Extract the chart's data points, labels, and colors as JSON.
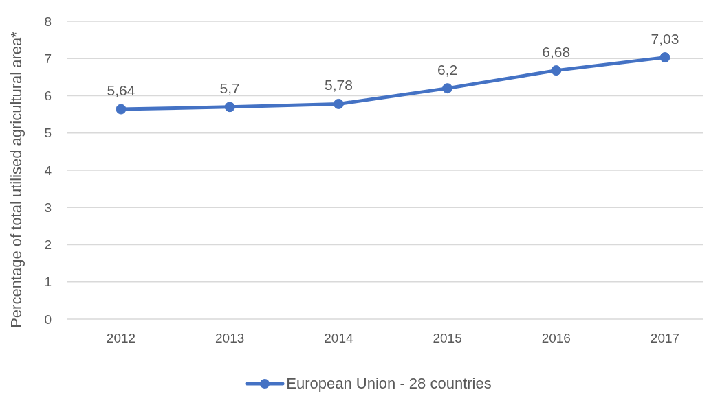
{
  "chart_data": {
    "type": "line",
    "ylabel": "Percentage of total utilised agricultural area*",
    "categories": [
      "2012",
      "2013",
      "2014",
      "2015",
      "2016",
      "2017"
    ],
    "series": [
      {
        "name": "European Union - 28 countries",
        "color": "#4472c4",
        "values": [
          5.64,
          5.7,
          5.78,
          6.2,
          6.68,
          7.03
        ],
        "value_labels": [
          "5,64",
          "5,7",
          "5,78",
          "6,2",
          "6,68",
          "7,03"
        ]
      }
    ],
    "ylim": [
      0,
      8
    ],
    "yticks": [
      0,
      1,
      2,
      3,
      4,
      5,
      6,
      7,
      8
    ],
    "grid": "y",
    "legend": "bottom",
    "marker": "circle",
    "line_style": "solid"
  }
}
